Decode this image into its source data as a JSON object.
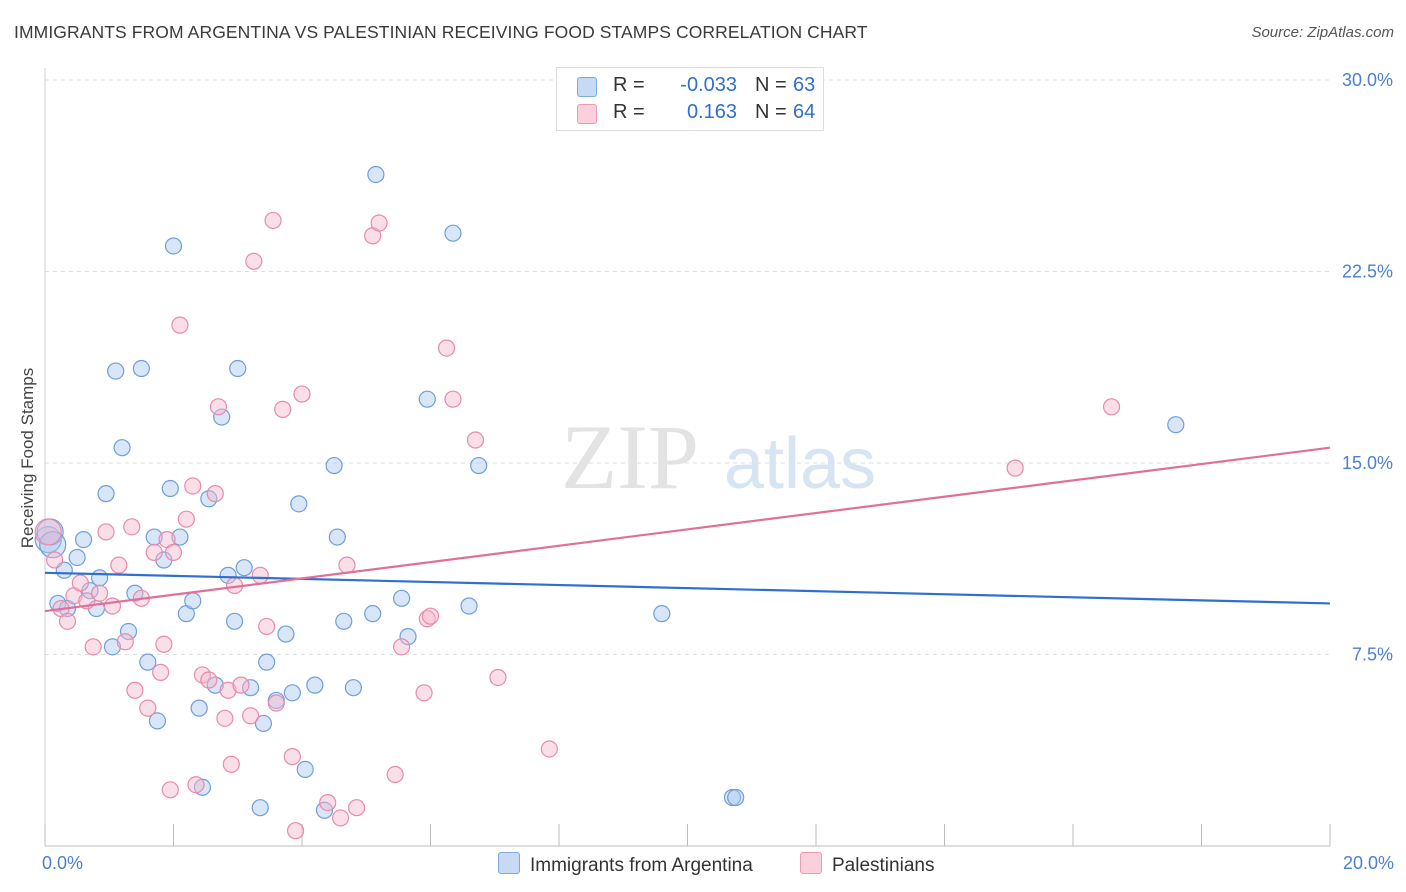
{
  "header": {
    "title": "IMMIGRANTS FROM ARGENTINA VS PALESTINIAN RECEIVING FOOD STAMPS CORRELATION CHART",
    "source": "Source: ZipAtlas.com"
  },
  "watermark": {
    "zip": "ZIP",
    "atlas": "atlas"
  },
  "legend": {
    "rows": [
      {
        "r_label": "R = ",
        "r_value": "-0.033",
        "n_label": "N = ",
        "n_value": "63",
        "color": "#a8c8f0"
      },
      {
        "r_label": "R = ",
        "r_value": "0.163",
        "n_label": "N = ",
        "n_value": "64",
        "color": "#f7b9cc"
      }
    ]
  },
  "chart_data": {
    "type": "scatter",
    "title": "IMMIGRANTS FROM ARGENTINA VS PALESTINIAN RECEIVING FOOD STAMPS CORRELATION CHART",
    "ylabel": "Receiving Food Stamps",
    "xlim": [
      0,
      20
    ],
    "ylim": [
      0,
      30
    ],
    "x_tick_labels": [
      "0.0%",
      "20.0%"
    ],
    "y_ticks": [
      7.5,
      15.0,
      22.5,
      30.0
    ],
    "y_tick_labels": [
      "7.5%",
      "15.0%",
      "22.5%",
      "30.0%"
    ],
    "grid": "horizontal dashed",
    "series": [
      {
        "name": "Immigrants from Argentina",
        "color": "#a8c8f0",
        "stroke": "#6e9fdc",
        "line_color": "#2f6fd0",
        "trend": [
          [
            0,
            10.7
          ],
          [
            20,
            9.5
          ]
        ],
        "points": [
          [
            0.05,
            12.0
          ],
          [
            0.2,
            9.5
          ],
          [
            0.3,
            10.8
          ],
          [
            0.35,
            9.3
          ],
          [
            0.5,
            11.3
          ],
          [
            0.6,
            12.0
          ],
          [
            0.7,
            10.0
          ],
          [
            0.8,
            9.3
          ],
          [
            0.85,
            10.5
          ],
          [
            0.95,
            13.8
          ],
          [
            1.05,
            7.8
          ],
          [
            1.1,
            18.6
          ],
          [
            1.2,
            15.6
          ],
          [
            1.3,
            8.4
          ],
          [
            1.4,
            9.9
          ],
          [
            1.5,
            18.7
          ],
          [
            1.6,
            7.2
          ],
          [
            1.7,
            12.1
          ],
          [
            1.75,
            4.9
          ],
          [
            1.85,
            11.2
          ],
          [
            1.95,
            14.0
          ],
          [
            2.0,
            23.5
          ],
          [
            2.1,
            12.1
          ],
          [
            2.2,
            9.1
          ],
          [
            2.3,
            9.6
          ],
          [
            2.4,
            5.4
          ],
          [
            2.45,
            2.3
          ],
          [
            2.55,
            13.6
          ],
          [
            2.65,
            6.3
          ],
          [
            2.75,
            16.8
          ],
          [
            2.85,
            10.6
          ],
          [
            2.95,
            8.8
          ],
          [
            3.0,
            18.7
          ],
          [
            3.1,
            10.9
          ],
          [
            3.2,
            6.2
          ],
          [
            3.35,
            1.5
          ],
          [
            3.4,
            4.8
          ],
          [
            3.45,
            7.2
          ],
          [
            3.6,
            5.7
          ],
          [
            3.75,
            8.3
          ],
          [
            3.85,
            6.0
          ],
          [
            3.95,
            13.4
          ],
          [
            4.05,
            3.0
          ],
          [
            4.2,
            6.3
          ],
          [
            4.35,
            1.4
          ],
          [
            4.5,
            14.9
          ],
          [
            4.55,
            12.1
          ],
          [
            4.65,
            8.8
          ],
          [
            4.8,
            6.2
          ],
          [
            5.1,
            9.1
          ],
          [
            5.15,
            26.3
          ],
          [
            5.55,
            9.7
          ],
          [
            5.65,
            8.2
          ],
          [
            5.95,
            17.5
          ],
          [
            6.35,
            24.0
          ],
          [
            6.6,
            9.4
          ],
          [
            6.75,
            14.9
          ],
          [
            9.6,
            9.1
          ],
          [
            10.7,
            1.9
          ],
          [
            10.75,
            1.9
          ],
          [
            17.6,
            16.5
          ],
          [
            0.08,
            12.3
          ],
          [
            0.12,
            11.8
          ]
        ]
      },
      {
        "name": "Palestinians",
        "color": "#f7b9cc",
        "stroke": "#e98aa8",
        "line_color": "#e0709a",
        "trend": [
          [
            0,
            9.2
          ],
          [
            20,
            15.6
          ]
        ],
        "points": [
          [
            0.05,
            12.3
          ],
          [
            0.15,
            11.2
          ],
          [
            0.25,
            9.3
          ],
          [
            0.35,
            8.8
          ],
          [
            0.45,
            9.8
          ],
          [
            0.55,
            10.3
          ],
          [
            0.65,
            9.6
          ],
          [
            0.75,
            7.8
          ],
          [
            0.85,
            9.9
          ],
          [
            0.95,
            12.3
          ],
          [
            1.05,
            9.4
          ],
          [
            1.15,
            11.0
          ],
          [
            1.25,
            8.0
          ],
          [
            1.35,
            12.5
          ],
          [
            1.4,
            6.1
          ],
          [
            1.5,
            9.7
          ],
          [
            1.6,
            5.4
          ],
          [
            1.7,
            11.5
          ],
          [
            1.8,
            6.8
          ],
          [
            1.85,
            7.9
          ],
          [
            1.9,
            12.0
          ],
          [
            1.95,
            2.2
          ],
          [
            2.0,
            11.5
          ],
          [
            2.1,
            20.4
          ],
          [
            2.2,
            12.8
          ],
          [
            2.3,
            14.1
          ],
          [
            2.35,
            2.4
          ],
          [
            2.45,
            6.7
          ],
          [
            2.55,
            6.5
          ],
          [
            2.65,
            13.8
          ],
          [
            2.7,
            17.2
          ],
          [
            2.8,
            5.0
          ],
          [
            2.85,
            6.1
          ],
          [
            2.9,
            3.2
          ],
          [
            2.95,
            10.2
          ],
          [
            3.05,
            6.3
          ],
          [
            3.2,
            5.1
          ],
          [
            3.25,
            22.9
          ],
          [
            3.35,
            10.6
          ],
          [
            3.45,
            8.6
          ],
          [
            3.55,
            24.5
          ],
          [
            3.6,
            5.6
          ],
          [
            3.7,
            17.1
          ],
          [
            3.85,
            3.5
          ],
          [
            3.9,
            0.6
          ],
          [
            4.0,
            17.7
          ],
          [
            4.4,
            1.7
          ],
          [
            4.6,
            1.1
          ],
          [
            4.7,
            11.0
          ],
          [
            4.85,
            1.5
          ],
          [
            5.1,
            23.9
          ],
          [
            5.2,
            24.4
          ],
          [
            5.45,
            2.8
          ],
          [
            5.55,
            7.8
          ],
          [
            5.9,
            6.0
          ],
          [
            5.95,
            8.9
          ],
          [
            6.0,
            9.0
          ],
          [
            6.25,
            19.5
          ],
          [
            6.35,
            17.5
          ],
          [
            6.7,
            15.9
          ],
          [
            7.05,
            6.6
          ],
          [
            7.85,
            3.8
          ],
          [
            15.1,
            14.8
          ],
          [
            16.6,
            17.2
          ]
        ]
      }
    ]
  }
}
